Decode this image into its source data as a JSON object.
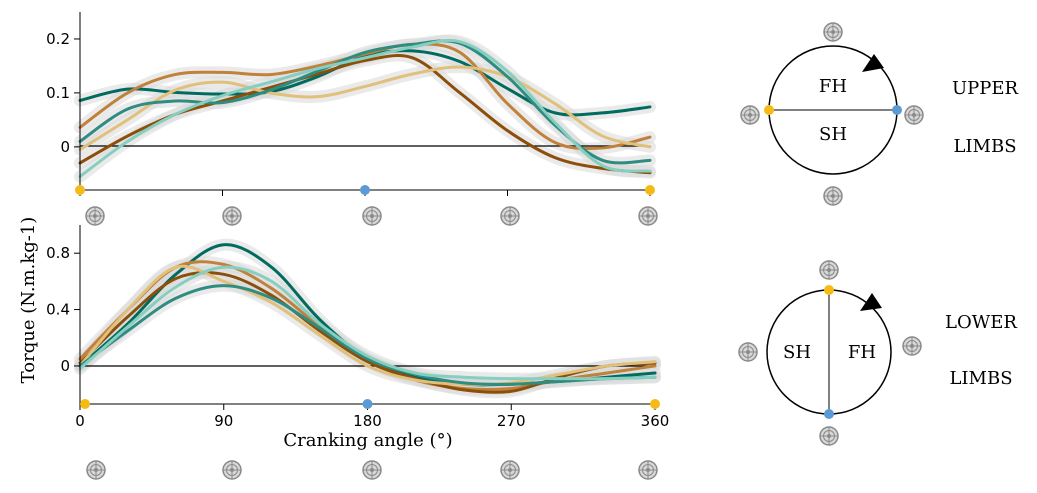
{
  "chart_data": [
    {
      "type": "line",
      "panel": "upper-limbs",
      "title": "",
      "xlabel": "",
      "ylabel": "Torque (N.m.kg-1)",
      "xlim": [
        0,
        360
      ],
      "ylim": [
        -0.08,
        0.25
      ],
      "yticks": [
        0,
        0.1,
        0.2
      ],
      "ytick_labels": [
        "0",
        "0.1",
        "0.2"
      ],
      "grid": false,
      "x": [
        0,
        30,
        60,
        90,
        120,
        150,
        180,
        210,
        240,
        270,
        300,
        330,
        360
      ],
      "series": [
        {
          "color": "#006b5f",
          "values": [
            0.086,
            0.107,
            0.101,
            0.098,
            0.102,
            0.13,
            0.168,
            0.178,
            0.158,
            0.108,
            0.063,
            0.063,
            0.074
          ]
        },
        {
          "color": "#c0813a",
          "values": [
            0.036,
            0.1,
            0.134,
            0.138,
            0.134,
            0.15,
            0.172,
            0.19,
            0.175,
            0.08,
            0.008,
            -0.002,
            0.018
          ]
        },
        {
          "color": "#8c4f0a",
          "values": [
            -0.03,
            0.02,
            0.06,
            0.085,
            0.11,
            0.135,
            0.16,
            0.165,
            0.1,
            0.03,
            -0.02,
            -0.04,
            -0.048
          ]
        },
        {
          "color": "#e0c07a",
          "values": [
            -0.005,
            0.05,
            0.105,
            0.12,
            0.1,
            0.093,
            0.112,
            0.135,
            0.148,
            0.13,
            0.08,
            0.02,
            0.0
          ]
        },
        {
          "color": "#2e8c80",
          "values": [
            0.01,
            0.07,
            0.085,
            0.082,
            0.105,
            0.14,
            0.175,
            0.19,
            0.192,
            0.13,
            0.04,
            -0.025,
            -0.025
          ]
        },
        {
          "color": "#86cfc0",
          "values": [
            -0.055,
            0.01,
            0.06,
            0.095,
            0.12,
            0.145,
            0.165,
            0.185,
            0.195,
            0.14,
            0.045,
            -0.035,
            -0.045
          ]
        }
      ]
    },
    {
      "type": "line",
      "panel": "lower-limbs",
      "title": "",
      "xlabel": "Cranking angle (°)",
      "ylabel": "Torque (N.m.kg-1)",
      "xlim": [
        0,
        360
      ],
      "ylim": [
        -0.27,
        1.0
      ],
      "yticks": [
        0,
        0.4,
        0.8
      ],
      "ytick_labels": [
        "0",
        "0.4",
        "0.8"
      ],
      "xticks": [
        0,
        90,
        180,
        270,
        360
      ],
      "xtick_labels": [
        "0",
        "90",
        "180",
        "270",
        "360"
      ],
      "grid": false,
      "x": [
        0,
        30,
        60,
        90,
        120,
        150,
        180,
        210,
        240,
        270,
        300,
        330,
        360
      ],
      "series": [
        {
          "color": "#006b5f",
          "values": [
            0.0,
            0.3,
            0.65,
            0.86,
            0.7,
            0.33,
            0.05,
            -0.08,
            -0.13,
            -0.13,
            -0.11,
            -0.08,
            -0.05
          ]
        },
        {
          "color": "#c0813a",
          "values": [
            0.05,
            0.4,
            0.7,
            0.72,
            0.55,
            0.28,
            0.04,
            -0.1,
            -0.16,
            -0.16,
            -0.1,
            -0.05,
            0.0
          ]
        },
        {
          "color": "#8c4f0a",
          "values": [
            0.02,
            0.35,
            0.62,
            0.65,
            0.5,
            0.25,
            0.03,
            -0.09,
            -0.17,
            -0.18,
            -0.08,
            0.0,
            0.02
          ]
        },
        {
          "color": "#e0c07a",
          "values": [
            0.0,
            0.4,
            0.7,
            0.6,
            0.45,
            0.22,
            0.0,
            -0.1,
            -0.13,
            -0.12,
            -0.06,
            0.0,
            0.03
          ]
        },
        {
          "color": "#2e8c80",
          "values": [
            0.0,
            0.25,
            0.48,
            0.57,
            0.48,
            0.27,
            0.05,
            -0.06,
            -0.12,
            -0.13,
            -0.11,
            -0.09,
            -0.08
          ]
        },
        {
          "color": "#86cfc0",
          "values": [
            -0.02,
            0.28,
            0.56,
            0.7,
            0.6,
            0.3,
            0.07,
            -0.05,
            -0.08,
            -0.09,
            -0.09,
            -0.09,
            -0.08
          ]
        }
      ]
    }
  ],
  "markers": {
    "start_color": "#f5bb14",
    "mid_color": "#5b9bd5",
    "angles": [
      0,
      180,
      360
    ]
  },
  "diagrams": {
    "upper": {
      "left_half": "FH",
      "right_half": "SH",
      "top_label": "FH",
      "bottom_label": "SH",
      "side_label_1": "UPPER",
      "side_label_2": "LIMBS"
    },
    "lower": {
      "left_label": "SH",
      "right_label": "FH",
      "side_label_1": "LOWER",
      "side_label_2": "LIMBS"
    }
  },
  "icons": {
    "crank": "crank-pedal-icon"
  }
}
